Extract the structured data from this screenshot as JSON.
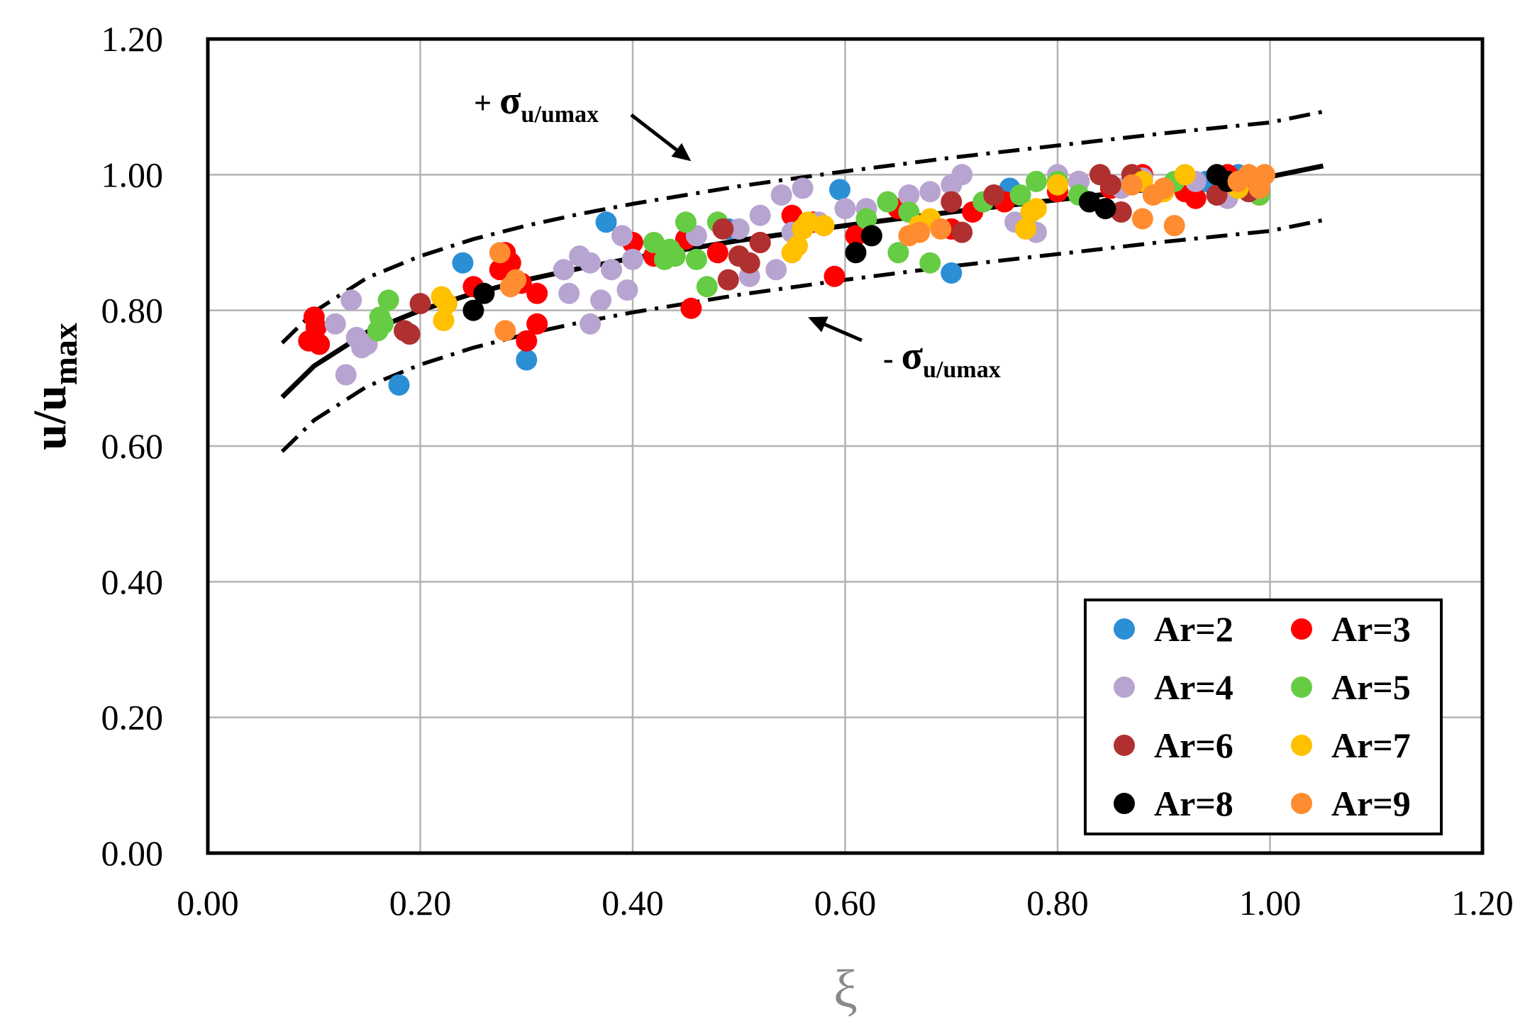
{
  "chart_data": {
    "type": "scatter",
    "title": "",
    "xlabel": "ξ",
    "ylabel": {
      "base": "u/u",
      "sub": "max"
    },
    "xlim": [
      0,
      1.2
    ],
    "ylim": [
      0,
      1.2
    ],
    "grid": true,
    "legend_position": "bottom-right",
    "x_ticks": [
      "0.00",
      "0.20",
      "0.40",
      "0.60",
      "0.80",
      "1.00",
      "1.20"
    ],
    "y_ticks": [
      "0.00",
      "0.20",
      "0.40",
      "0.60",
      "0.80",
      "1.00",
      "1.20"
    ],
    "annotations": {
      "upper": {
        "prefix": "+ ",
        "symbol": "σ",
        "sub": "u/umax",
        "arrow_to": [
          0.455,
          1.02
        ]
      },
      "lower": {
        "prefix": "- ",
        "symbol": "σ",
        "sub": "u/umax",
        "arrow_to": [
          0.565,
          0.79
        ]
      }
    },
    "curves": {
      "fit": {
        "x": [
          0.07,
          0.1,
          0.15,
          0.2,
          0.25,
          0.3,
          0.35,
          0.4,
          0.45,
          0.5,
          0.55,
          0.6,
          0.65,
          0.7,
          0.75,
          0.8,
          0.85,
          0.9,
          0.95,
          1.0,
          1.05
        ],
        "y": [
          0.672,
          0.718,
          0.768,
          0.8,
          0.825,
          0.845,
          0.862,
          0.877,
          0.89,
          0.903,
          0.914,
          0.925,
          0.935,
          0.945,
          0.954,
          0.963,
          0.972,
          0.981,
          0.989,
          0.997,
          1.013
        ],
        "style": "solid"
      },
      "upper": {
        "x": [
          0.07,
          0.1,
          0.15,
          0.2,
          0.25,
          0.3,
          0.35,
          0.4,
          0.45,
          0.5,
          0.55,
          0.6,
          0.65,
          0.7,
          0.75,
          0.8,
          0.85,
          0.9,
          0.95,
          1.0,
          1.05
        ],
        "y": [
          0.752,
          0.798,
          0.848,
          0.88,
          0.905,
          0.925,
          0.942,
          0.957,
          0.97,
          0.983,
          0.994,
          1.005,
          1.015,
          1.025,
          1.034,
          1.043,
          1.052,
          1.061,
          1.069,
          1.077,
          1.093
        ],
        "style": "dash-dot"
      },
      "lower": {
        "x": [
          0.07,
          0.1,
          0.15,
          0.2,
          0.25,
          0.3,
          0.35,
          0.4,
          0.45,
          0.5,
          0.55,
          0.6,
          0.65,
          0.7,
          0.75,
          0.8,
          0.85,
          0.9,
          0.95,
          1.0,
          1.05
        ],
        "y": [
          0.592,
          0.638,
          0.688,
          0.72,
          0.745,
          0.765,
          0.782,
          0.797,
          0.81,
          0.823,
          0.834,
          0.845,
          0.855,
          0.865,
          0.874,
          0.883,
          0.892,
          0.901,
          0.909,
          0.917,
          0.933
        ],
        "style": "dash-dot"
      }
    },
    "series": [
      {
        "name": "Ar=2",
        "color": "#2b8fd6",
        "x": [
          0.18,
          0.24,
          0.3,
          0.375,
          0.49,
          0.595,
          0.7,
          0.755,
          0.94,
          0.97,
          0.99
        ],
        "y": [
          0.69,
          0.87,
          0.727,
          0.93,
          0.92,
          0.978,
          0.855,
          0.98,
          0.99,
          1.0,
          0.975
        ]
      },
      {
        "name": "Ar=3",
        "color": "#ff0000",
        "x": [
          0.095,
          0.1,
          0.102,
          0.105,
          0.25,
          0.275,
          0.28,
          0.285,
          0.295,
          0.3,
          0.31,
          0.31,
          0.4,
          0.42,
          0.45,
          0.455,
          0.48,
          0.52,
          0.55,
          0.57,
          0.59,
          0.61,
          0.65,
          0.7,
          0.72,
          0.75,
          0.8,
          0.82,
          0.85,
          0.88,
          0.92,
          0.93,
          0.96,
          0.98,
          0.99
        ],
        "y": [
          0.755,
          0.79,
          0.775,
          0.75,
          0.835,
          0.86,
          0.885,
          0.87,
          0.84,
          0.755,
          0.825,
          0.78,
          0.9,
          0.88,
          0.905,
          0.803,
          0.885,
          0.9,
          0.94,
          0.93,
          0.85,
          0.91,
          0.95,
          0.92,
          0.945,
          0.96,
          0.975,
          0.99,
          0.98,
          1.0,
          0.975,
          0.965,
          1.0,
          0.985,
          0.97
        ]
      },
      {
        "name": "Ar=4",
        "color": "#b8a4d0",
        "x": [
          0.12,
          0.13,
          0.135,
          0.14,
          0.145,
          0.15,
          0.335,
          0.34,
          0.35,
          0.36,
          0.36,
          0.37,
          0.38,
          0.39,
          0.395,
          0.4,
          0.46,
          0.5,
          0.51,
          0.52,
          0.535,
          0.54,
          0.55,
          0.56,
          0.575,
          0.6,
          0.62,
          0.66,
          0.68,
          0.7,
          0.71,
          0.76,
          0.78,
          0.8,
          0.82,
          0.86,
          0.88,
          0.93,
          0.96
        ],
        "y": [
          0.78,
          0.705,
          0.815,
          0.76,
          0.745,
          0.75,
          0.86,
          0.825,
          0.88,
          0.87,
          0.78,
          0.815,
          0.86,
          0.91,
          0.83,
          0.875,
          0.91,
          0.92,
          0.85,
          0.94,
          0.86,
          0.97,
          0.915,
          0.98,
          0.93,
          0.95,
          0.95,
          0.97,
          0.975,
          0.985,
          1.0,
          0.93,
          0.915,
          1.0,
          0.99,
          0.98,
          0.995,
          0.99,
          0.965
        ]
      },
      {
        "name": "Ar=5",
        "color": "#66cc44",
        "x": [
          0.16,
          0.162,
          0.165,
          0.17,
          0.42,
          0.43,
          0.435,
          0.44,
          0.45,
          0.46,
          0.47,
          0.48,
          0.62,
          0.64,
          0.65,
          0.66,
          0.68,
          0.73,
          0.765,
          0.78,
          0.8,
          0.82,
          0.91,
          0.99
        ],
        "y": [
          0.77,
          0.79,
          0.78,
          0.815,
          0.9,
          0.875,
          0.89,
          0.88,
          0.93,
          0.875,
          0.835,
          0.93,
          0.935,
          0.96,
          0.885,
          0.945,
          0.87,
          0.96,
          0.97,
          0.99,
          0.99,
          0.97,
          0.99,
          0.97
        ]
      },
      {
        "name": "Ar=6",
        "color": "#b03030",
        "x": [
          0.185,
          0.19,
          0.2,
          0.485,
          0.49,
          0.5,
          0.51,
          0.52,
          0.7,
          0.71,
          0.74,
          0.84,
          0.85,
          0.86,
          0.87,
          0.95,
          0.98
        ],
        "y": [
          0.77,
          0.765,
          0.81,
          0.92,
          0.845,
          0.88,
          0.87,
          0.9,
          0.96,
          0.915,
          0.97,
          1.0,
          0.985,
          0.945,
          1.0,
          0.97,
          0.975
        ]
      },
      {
        "name": "Ar=7",
        "color": "#ffc000",
        "x": [
          0.22,
          0.222,
          0.225,
          0.55,
          0.555,
          0.56,
          0.565,
          0.58,
          0.67,
          0.68,
          0.77,
          0.775,
          0.78,
          0.8,
          0.88,
          0.9,
          0.92,
          0.97
        ],
        "y": [
          0.82,
          0.785,
          0.81,
          0.885,
          0.895,
          0.92,
          0.93,
          0.925,
          0.925,
          0.935,
          0.92,
          0.945,
          0.95,
          0.985,
          0.99,
          0.975,
          1.0,
          0.98
        ]
      },
      {
        "name": "Ar=8",
        "color": "#000000",
        "x": [
          0.25,
          0.26,
          0.61,
          0.625,
          0.83,
          0.845,
          0.95,
          0.96
        ],
        "y": [
          0.8,
          0.825,
          0.885,
          0.91,
          0.96,
          0.95,
          1.0,
          0.99
        ]
      },
      {
        "name": "Ar=9",
        "color": "#ff8c30",
        "x": [
          0.275,
          0.28,
          0.285,
          0.29,
          0.66,
          0.67,
          0.69,
          0.87,
          0.88,
          0.89,
          0.9,
          0.91,
          0.97,
          0.98,
          0.99,
          0.995
        ],
        "y": [
          0.885,
          0.77,
          0.835,
          0.845,
          0.91,
          0.915,
          0.92,
          0.985,
          0.935,
          0.97,
          0.98,
          0.925,
          0.99,
          1.0,
          0.98,
          1.0
        ]
      }
    ]
  }
}
